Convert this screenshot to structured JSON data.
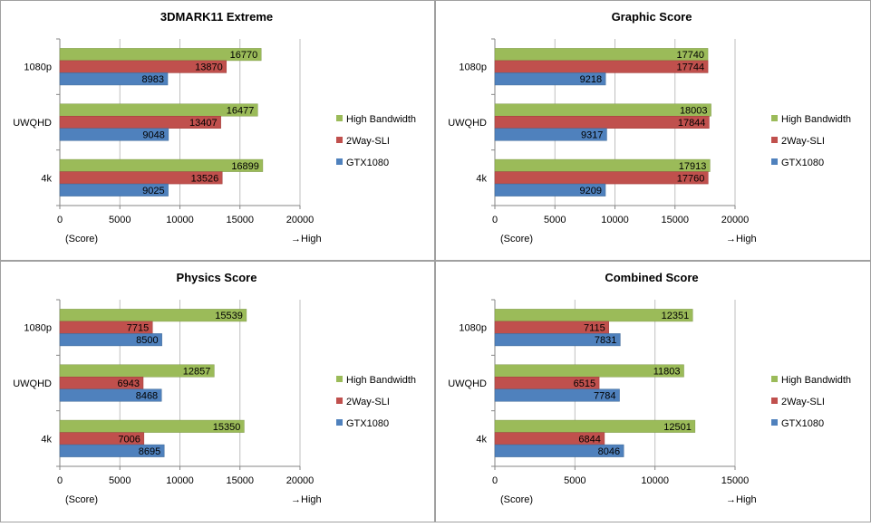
{
  "series_colors": {
    "High Bandwidth": "#9bbb59",
    "2Way-SLI": "#c0504d",
    "GTX1080": "#4f81bd"
  },
  "chart_data": [
    {
      "type": "bar",
      "orientation": "horizontal",
      "title": "3DMARK11 Extreme",
      "xlabel": "(Score)",
      "xlabel_right": "→High",
      "categories": [
        "1080p",
        "UWQHD",
        "4k"
      ],
      "series": [
        {
          "name": "High Bandwidth",
          "values": [
            16770,
            16477,
            16899
          ]
        },
        {
          "name": "2Way-SLI",
          "values": [
            13870,
            13407,
            13526
          ]
        },
        {
          "name": "GTX1080",
          "values": [
            8983,
            9048,
            9025
          ]
        }
      ],
      "xlim": [
        0,
        20000
      ],
      "xticks": [
        0,
        5000,
        10000,
        15000,
        20000
      ],
      "grid": true,
      "legend": "right"
    },
    {
      "type": "bar",
      "orientation": "horizontal",
      "title": "Graphic Score",
      "xlabel": "(Score)",
      "xlabel_right": "→High",
      "categories": [
        "1080p",
        "UWQHD",
        "4k"
      ],
      "series": [
        {
          "name": "High Bandwidth",
          "values": [
            17740,
            18003,
            17913
          ]
        },
        {
          "name": "2Way-SLI",
          "values": [
            17744,
            17844,
            17760
          ]
        },
        {
          "name": "GTX1080",
          "values": [
            9218,
            9317,
            9209
          ]
        }
      ],
      "xlim": [
        0,
        20000
      ],
      "xticks": [
        0,
        5000,
        10000,
        15000,
        20000
      ],
      "grid": true,
      "legend": "right"
    },
    {
      "type": "bar",
      "orientation": "horizontal",
      "title": "Physics Score",
      "xlabel": "(Score)",
      "xlabel_right": "→High",
      "categories": [
        "1080p",
        "UWQHD",
        "4k"
      ],
      "series": [
        {
          "name": "High Bandwidth",
          "values": [
            15539,
            12857,
            15350
          ]
        },
        {
          "name": "2Way-SLI",
          "values": [
            7715,
            6943,
            7006
          ]
        },
        {
          "name": "GTX1080",
          "values": [
            8500,
            8468,
            8695
          ]
        }
      ],
      "xlim": [
        0,
        20000
      ],
      "xticks": [
        0,
        5000,
        10000,
        15000,
        20000
      ],
      "grid": true,
      "legend": "right"
    },
    {
      "type": "bar",
      "orientation": "horizontal",
      "title": "Combined Score",
      "xlabel": "(Score)",
      "xlabel_right": "→High",
      "categories": [
        "1080p",
        "UWQHD",
        "4k"
      ],
      "series": [
        {
          "name": "High Bandwidth",
          "values": [
            12351,
            11803,
            12501
          ]
        },
        {
          "name": "2Way-SLI",
          "values": [
            7115,
            6515,
            6844
          ]
        },
        {
          "name": "GTX1080",
          "values": [
            7831,
            7784,
            8046
          ]
        }
      ],
      "xlim": [
        0,
        15000
      ],
      "xticks": [
        0,
        5000,
        10000,
        15000
      ],
      "grid": true,
      "legend": "right"
    }
  ]
}
